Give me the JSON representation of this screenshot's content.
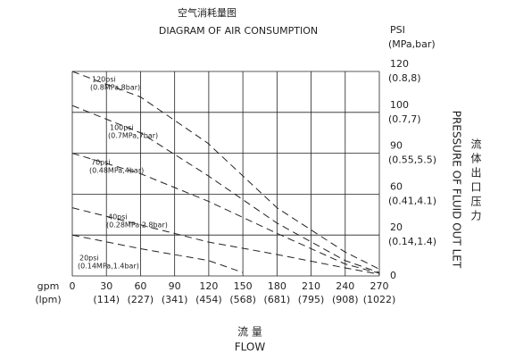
{
  "chart_data": {
    "type": "line",
    "title": "空气消耗量图",
    "subtitle": "DIAGRAM OF AIR CONSUMPTION",
    "y_label": "PSI",
    "y_label_units": "(MPa,bar)",
    "y2_label": "PRESSURE OF FLUID OUT LET",
    "y2_label_cn": "流体出口压力",
    "x_label_left": "gpm",
    "x_label_left_units": "(lpm)",
    "x_label_cn": "流 量",
    "x_label": "FLOW",
    "xlim": [
      0,
      270
    ],
    "xticks": [
      0,
      30,
      60,
      90,
      120,
      150,
      180,
      210,
      240,
      270
    ],
    "xtick_sublabels": [
      null,
      "(114)",
      "(227)",
      "(341)",
      "(454)",
      "(568)",
      "(681)",
      "(795)",
      "(908)",
      "(1022)"
    ],
    "ylim": [
      0,
      120
    ],
    "yticks": [
      0,
      {
        "value": 24,
        "label": "20"
      },
      {
        "value": 48,
        "label": "60"
      },
      {
        "value": 72,
        "label": "90"
      },
      {
        "value": 96,
        "label": "100"
      },
      120
    ],
    "ytick_sublabels": [
      null,
      "(0.14,1.4)",
      "(0.41,4.1)",
      "(0.55,5.5)",
      "(0.7,7)",
      "(0.8,8)"
    ],
    "grid": true,
    "series": [
      {
        "name": "120psi",
        "note": "(0.8MPa,8bar)",
        "color": "#222222",
        "x": [
          0,
          60,
          119,
          180,
          240,
          270
        ],
        "values": [
          120,
          105,
          78,
          40,
          14,
          4
        ]
      },
      {
        "name": "100psi",
        "note": "(0.7MPa,7bar)",
        "color": "#222222",
        "x": [
          0,
          60,
          119,
          180,
          240,
          270
        ],
        "values": [
          100,
          84,
          59,
          31,
          9,
          2
        ]
      },
      {
        "name": "70psi",
        "note": "(0.48MPa,4bar)",
        "color": "#222222",
        "x": [
          0,
          60,
          119,
          180,
          240,
          270
        ],
        "values": [
          72,
          60,
          44,
          25,
          7,
          1.6
        ]
      },
      {
        "name": "40psi",
        "note": "(0.28MPa,2.8bar)",
        "color": "#222222",
        "x": [
          0,
          60,
          119,
          180,
          240,
          270
        ],
        "values": [
          40,
          30,
          20,
          12.6,
          4.7,
          1
        ]
      },
      {
        "name": "20psi",
        "note": "(0.14MPa,1.4bar)",
        "color": "#222222",
        "x": [
          0,
          60,
          120,
          150
        ],
        "values": [
          24,
          16,
          9,
          2
        ]
      }
    ]
  }
}
